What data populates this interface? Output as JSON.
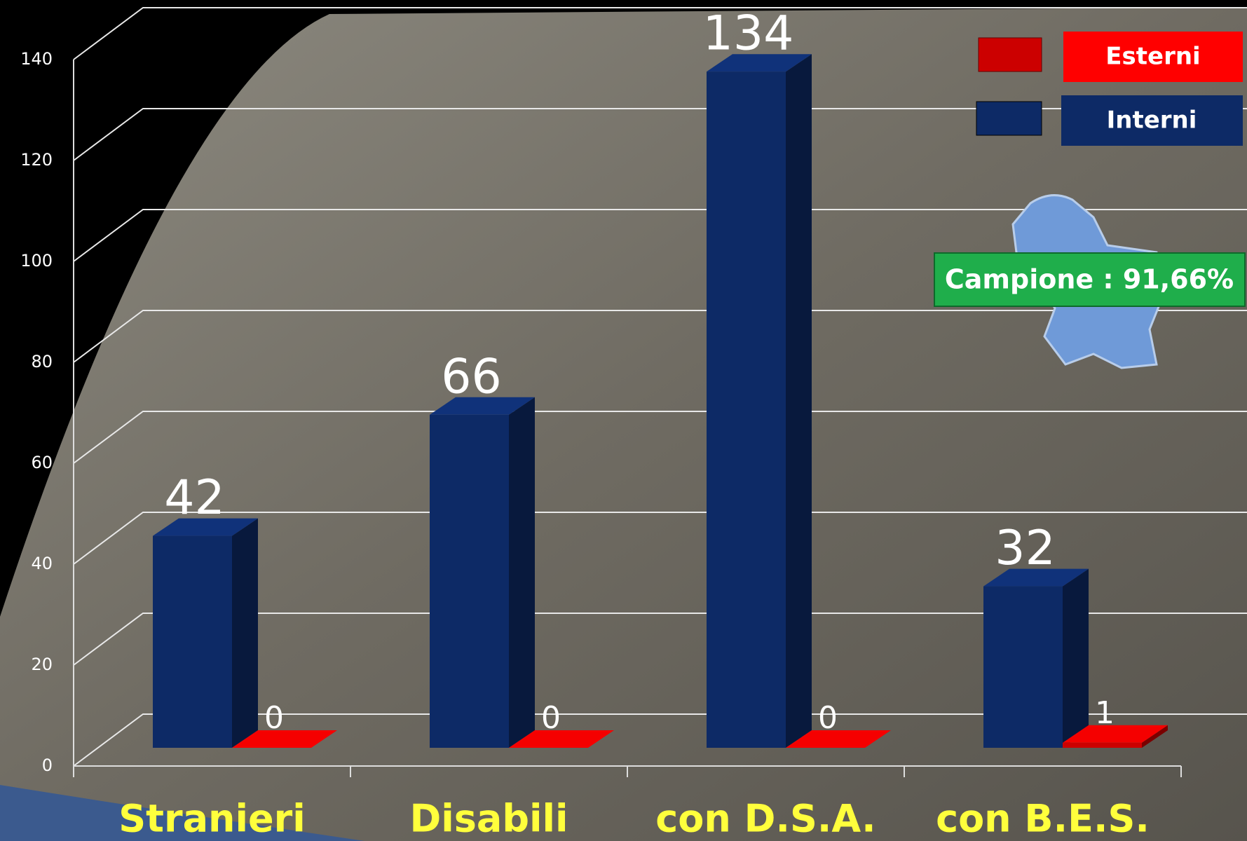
{
  "chart_data": {
    "type": "bar3d",
    "categories": [
      "Stranieri",
      "Disabili",
      "con D.S.A.",
      "con B.E.S."
    ],
    "series": [
      {
        "name": "Interni",
        "color": "#0d2a66",
        "values": [
          42,
          66,
          134,
          32
        ]
      },
      {
        "name": "Esterni",
        "color": "#cc0000",
        "values": [
          0,
          0,
          0,
          1
        ]
      }
    ],
    "ylim": [
      0,
      140
    ],
    "yticks": [
      0,
      20,
      40,
      60,
      80,
      100,
      120,
      140
    ],
    "grid": true,
    "annotation": "Campione : 91,66%"
  }
}
